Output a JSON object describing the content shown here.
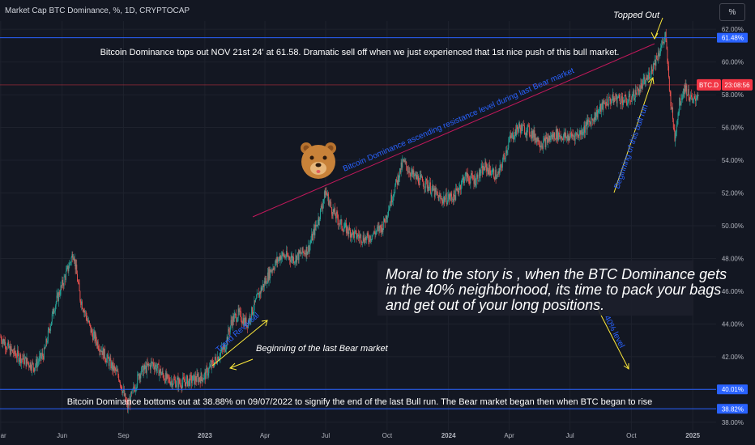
{
  "header": {
    "title": "Market Cap BTC Dominance, %, 1D, CRYPTOCAP",
    "scale_button": "%"
  },
  "colors": {
    "bg": "#131722",
    "up": "#26a69a",
    "down": "#ef5350",
    "hline": "#2962ff",
    "trend": "#c2185b",
    "annotation": "#ffeb3b",
    "tag_blue": "#2962ff",
    "tag_red": "#f23645"
  },
  "chart_data": {
    "type": "candlestick",
    "title": "Market Cap BTC Dominance, %, 1D, CRYPTOCAP",
    "ylim": [
      37.5,
      62.5
    ],
    "y_ticks": [
      "38.00%",
      "40.00%",
      "42.00%",
      "44.00%",
      "46.00%",
      "48.00%",
      "50.00%",
      "52.00%",
      "54.00%",
      "56.00%",
      "58.00%",
      "60.00%",
      "62.00%"
    ],
    "x_ticks": [
      "Mar",
      "Jun",
      "Sep",
      "2023",
      "Apr",
      "Jul",
      "Oct",
      "2024",
      "Apr",
      "Jul",
      "Oct",
      "2025"
    ],
    "price_path": [
      [
        "2022-03-01",
        43.2
      ],
      [
        "2022-03-15",
        42.4
      ],
      [
        "2022-04-05",
        41.8
      ],
      [
        "2022-04-20",
        41.4
      ],
      [
        "2022-05-05",
        42.2
      ],
      [
        "2022-05-20",
        45.0
      ],
      [
        "2022-06-10",
        47.4
      ],
      [
        "2022-06-18",
        48.4
      ],
      [
        "2022-06-28",
        45.6
      ],
      [
        "2022-07-15",
        43.5
      ],
      [
        "2022-08-05",
        42.0
      ],
      [
        "2022-08-25",
        40.8
      ],
      [
        "2022-09-07",
        38.88
      ],
      [
        "2022-09-25",
        41.0
      ],
      [
        "2022-10-15",
        41.6
      ],
      [
        "2022-11-05",
        40.6
      ],
      [
        "2022-11-25",
        40.4
      ],
      [
        "2022-12-15",
        40.6
      ],
      [
        "2022-12-31",
        40.8
      ],
      [
        "2023-01-15",
        41.7
      ],
      [
        "2023-01-31",
        42.6
      ],
      [
        "2023-02-10",
        44.2
      ],
      [
        "2023-02-20",
        44.6
      ],
      [
        "2023-03-05",
        44.0
      ],
      [
        "2023-03-25",
        46.0
      ],
      [
        "2023-04-10",
        47.3
      ],
      [
        "2023-04-25",
        48.2
      ],
      [
        "2023-05-15",
        48.0
      ],
      [
        "2023-06-05",
        48.6
      ],
      [
        "2023-06-20",
        50.4
      ],
      [
        "2023-07-01",
        52.1
      ],
      [
        "2023-07-10",
        51.0
      ],
      [
        "2023-07-25",
        50.0
      ],
      [
        "2023-08-15",
        49.4
      ],
      [
        "2023-09-01",
        49.2
      ],
      [
        "2023-09-25",
        50.0
      ],
      [
        "2023-10-10",
        52.0
      ],
      [
        "2023-10-25",
        53.9
      ],
      [
        "2023-11-10",
        53.0
      ],
      [
        "2023-12-01",
        52.5
      ],
      [
        "2023-12-20",
        51.6
      ],
      [
        "2024-01-10",
        51.8
      ],
      [
        "2024-01-25",
        53.0
      ],
      [
        "2024-02-10",
        52.8
      ],
      [
        "2024-02-25",
        53.6
      ],
      [
        "2024-03-15",
        53.0
      ],
      [
        "2024-04-01",
        55.2
      ],
      [
        "2024-04-15",
        56.0
      ],
      [
        "2024-05-01",
        55.8
      ],
      [
        "2024-05-20",
        55.0
      ],
      [
        "2024-06-10",
        55.6
      ],
      [
        "2024-06-25",
        55.4
      ],
      [
        "2024-07-15",
        55.6
      ],
      [
        "2024-08-05",
        56.6
      ],
      [
        "2024-08-25",
        57.6
      ],
      [
        "2024-09-10",
        57.8
      ],
      [
        "2024-09-25",
        57.6
      ],
      [
        "2024-10-10",
        58.2
      ],
      [
        "2024-10-25",
        59.0
      ],
      [
        "2024-11-05",
        60.0
      ],
      [
        "2024-11-21",
        61.58
      ],
      [
        "2024-11-28",
        58.0
      ],
      [
        "2024-12-05",
        55.4
      ],
      [
        "2024-12-12",
        57.5
      ],
      [
        "2024-12-20",
        58.5
      ],
      [
        "2025-01-01",
        57.5
      ],
      [
        "2025-01-10",
        58.2
      ]
    ],
    "horizontal_lines": [
      {
        "value": 61.48,
        "label": "61.48%"
      },
      {
        "value": 40.01,
        "label": "40.01%"
      },
      {
        "value": 38.82,
        "label": "38.82%"
      }
    ],
    "current_price_tag": {
      "symbol": "BTC.D",
      "countdown": "23:08:56",
      "value": 58.6
    },
    "annotations": [
      "Topped Out",
      "Bitcoin Dominance tops out NOV 21st 24' at 61.58. Dramatic sell off when we just experienced that 1st nice push of this bull market.",
      "Bitcoin Dominance ascending resistance level during last Bear market",
      "Beginning of this bull run",
      "Moral to the story is , when the BTC Dominance gets in the 40% neighborhood, its time to pack your bags and get out of your long positions.",
      "40% level",
      "Trend Reversal",
      "Beginning of the last Bear market",
      "Bitcoin Dominance bottoms out at 38.88% on 09/07/2022 to signify the end of the last Bull run. The Bear market began then when BTC began to rise"
    ]
  }
}
